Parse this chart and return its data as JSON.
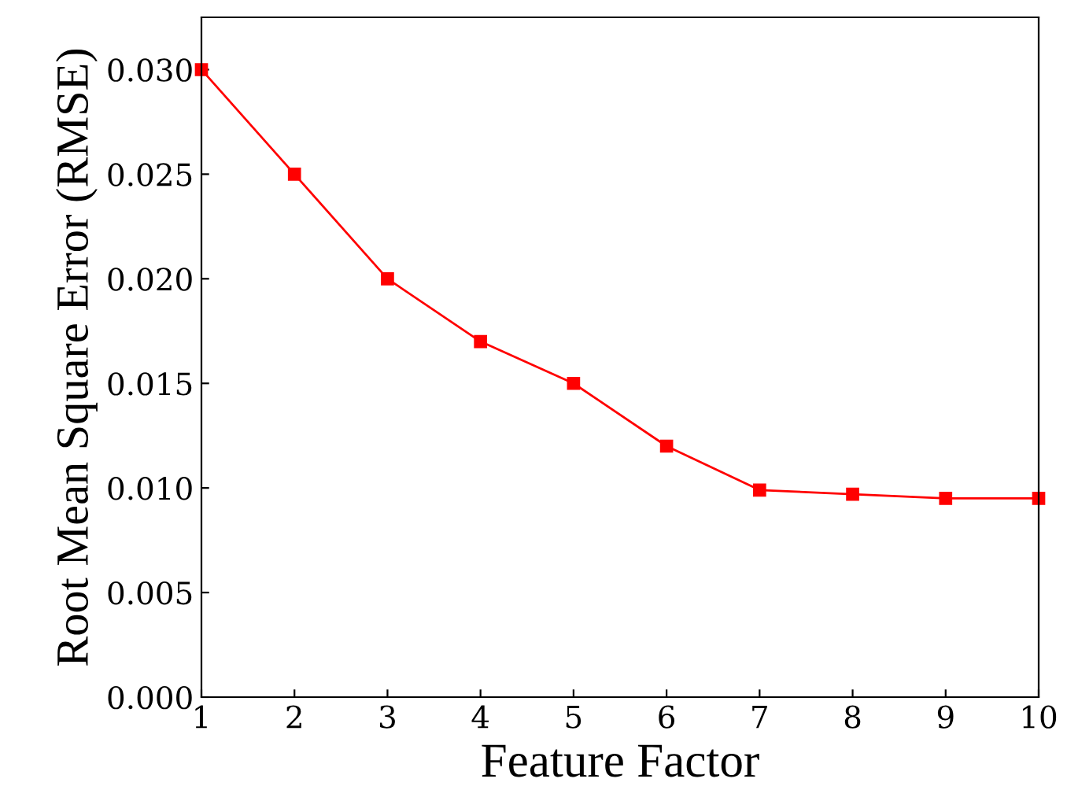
{
  "chart_data": {
    "type": "line",
    "xlabel": "Feature Factor",
    "ylabel": "Root Mean Square Error (RMSE)",
    "x": [
      1,
      2,
      3,
      4,
      5,
      6,
      7,
      8,
      9,
      10
    ],
    "series": [
      {
        "color": "#ff0000",
        "values": [
          0.03,
          0.025,
          0.02,
          0.017,
          0.015,
          0.012,
          0.0099,
          0.0097,
          0.0095,
          0.0095
        ]
      }
    ],
    "xlim": [
      1,
      10
    ],
    "xticks": [
      1,
      2,
      3,
      4,
      5,
      6,
      7,
      8,
      9,
      10
    ],
    "ylim": [
      0,
      0.0325
    ],
    "yticks": [
      {
        "value": 0,
        "label": "0.000"
      },
      {
        "value": 0.005,
        "label": "0.005"
      },
      {
        "value": 0.01,
        "label": "0.010"
      },
      {
        "value": 0.015,
        "label": "0.015"
      },
      {
        "value": 0.02,
        "label": "0.020"
      },
      {
        "value": 0.025,
        "label": "0.025"
      },
      {
        "value": 0.03,
        "label": "0.030"
      }
    ],
    "marker": "square",
    "line_style": "solid",
    "grid": false
  }
}
